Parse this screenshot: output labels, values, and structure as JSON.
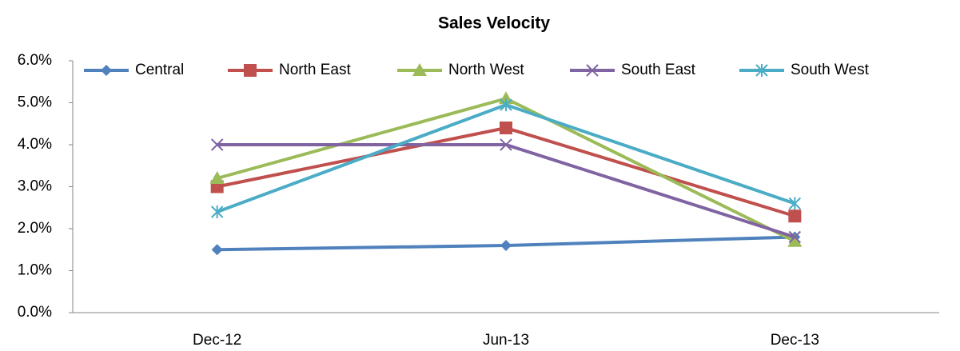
{
  "chart_data": {
    "type": "line",
    "title": "Sales Velocity",
    "categories": [
      "Dec-12",
      "Jun-13",
      "Dec-13"
    ],
    "series": [
      {
        "name": "Central",
        "color": "#4f81bd",
        "marker": "diamond",
        "values": [
          1.5,
          1.6,
          1.8
        ]
      },
      {
        "name": "North East",
        "color": "#c0504d",
        "marker": "square",
        "values": [
          3.0,
          4.4,
          2.3
        ]
      },
      {
        "name": "North West",
        "color": "#9bbb59",
        "marker": "triangle",
        "values": [
          3.2,
          5.1,
          1.7
        ]
      },
      {
        "name": "South East",
        "color": "#8064a2",
        "marker": "x",
        "values": [
          4.0,
          4.0,
          1.8
        ]
      },
      {
        "name": "South West",
        "color": "#4bacc6",
        "marker": "star",
        "values": [
          2.4,
          4.95,
          2.6
        ]
      }
    ],
    "ylim": [
      0,
      6
    ],
    "yticks": [
      {
        "value": 0,
        "label": "0.0%"
      },
      {
        "value": 1,
        "label": "1.0%"
      },
      {
        "value": 2,
        "label": "2.0%"
      },
      {
        "value": 3,
        "label": "3.0%"
      },
      {
        "value": 4,
        "label": "4.0%"
      },
      {
        "value": 5,
        "label": "5.0%"
      },
      {
        "value": 6,
        "label": "6.0%"
      }
    ],
    "grid": false,
    "legend": "top"
  }
}
